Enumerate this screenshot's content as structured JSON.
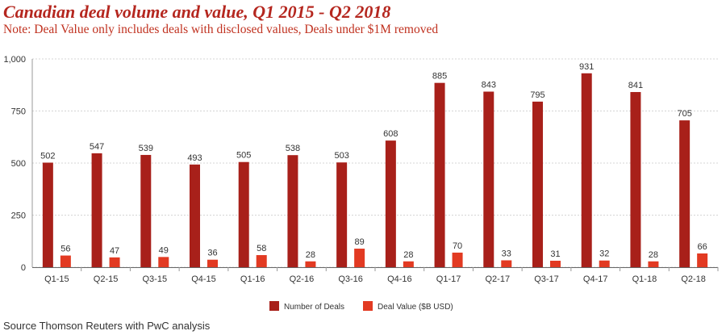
{
  "header": {
    "title": "Canadian deal volume and value, Q1 2015 - Q2 2018",
    "subtitle": "Note: Deal Value only includes deals with disclosed values, Deals under $1M removed"
  },
  "footer": {
    "source": "Source Thomson Reuters with PwC analysis"
  },
  "chart_data": {
    "type": "bar",
    "title": "Canadian deal volume and value, Q1 2015 - Q2 2018",
    "xlabel": "",
    "ylabel": "",
    "ylim": [
      0,
      1000
    ],
    "yticks": [
      0,
      250,
      500,
      750,
      1000
    ],
    "ytick_labels": [
      "0",
      "250",
      "500",
      "750",
      "1,000"
    ],
    "legend_position": "bottom-center",
    "categories": [
      "Q1-15",
      "Q2-15",
      "Q3-15",
      "Q4-15",
      "Q1-16",
      "Q2-16",
      "Q3-16",
      "Q4-16",
      "Q1-17",
      "Q2-17",
      "Q3-17",
      "Q4-17",
      "Q1-18",
      "Q2-18"
    ],
    "series": [
      {
        "name": "Number of Deals",
        "color": "#a8201a",
        "values": [
          502,
          547,
          539,
          493,
          505,
          538,
          503,
          608,
          885,
          843,
          795,
          931,
          841,
          705
        ]
      },
      {
        "name": "Deal Value ($B USD)",
        "color": "#e23a22",
        "values": [
          56,
          47,
          49,
          36,
          58,
          28,
          89,
          28,
          70,
          33,
          31,
          32,
          28,
          66
        ]
      }
    ]
  }
}
